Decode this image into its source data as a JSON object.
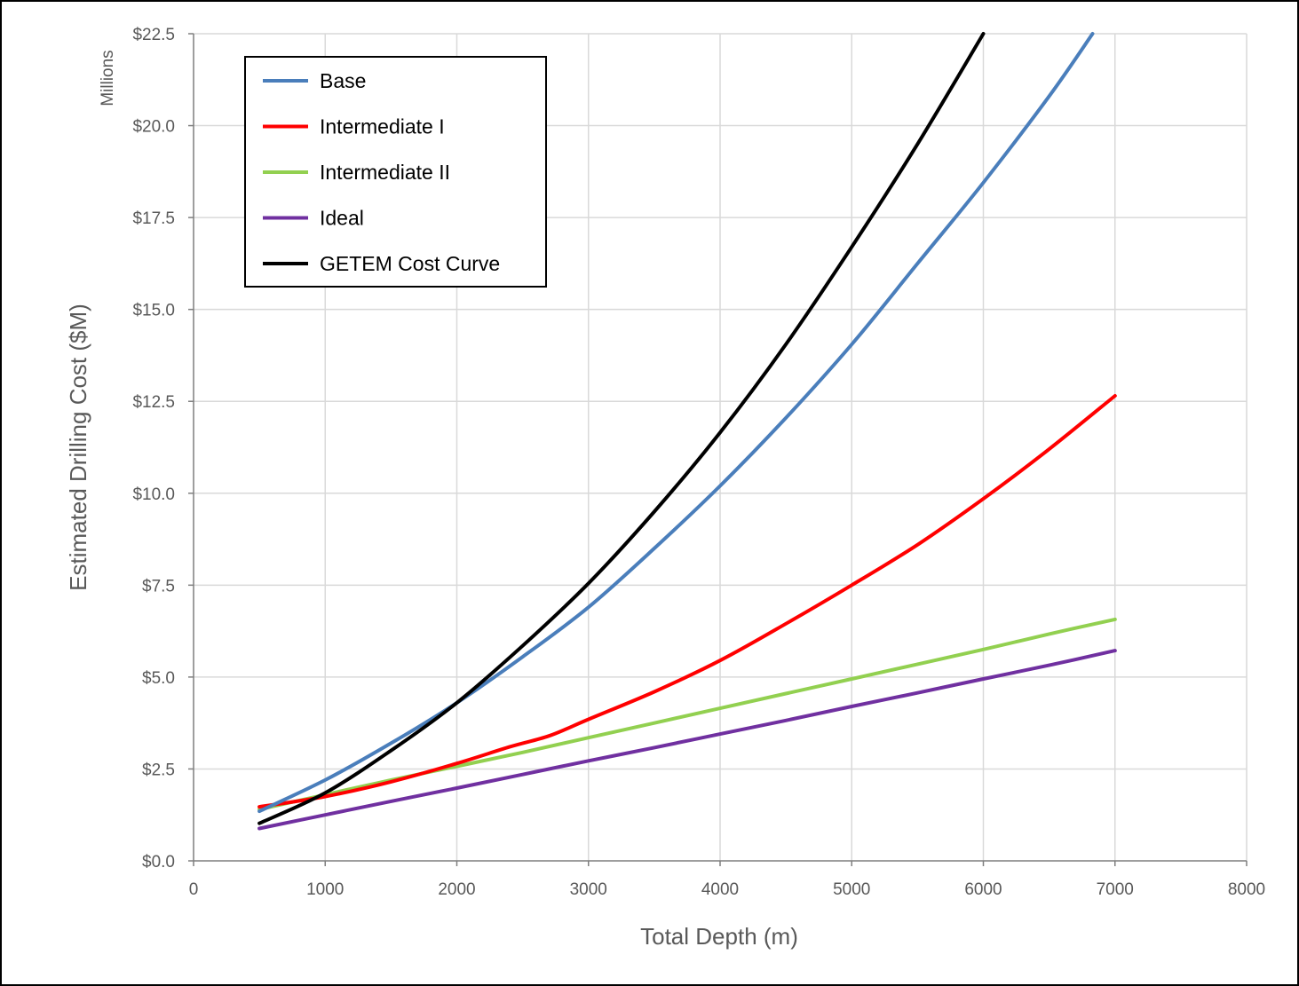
{
  "chart_data": {
    "type": "line",
    "xlabel": "Total Depth (m)",
    "ylabel": "Estimated Drilling Cost ($M)",
    "y_units_label": "Millions",
    "xlim": [
      0,
      8000
    ],
    "ylim": [
      0,
      22.5
    ],
    "x_ticks": [
      "0",
      "1000",
      "2000",
      "3000",
      "4000",
      "5000",
      "6000",
      "7000",
      "8000"
    ],
    "x_tick_values": [
      0,
      1000,
      2000,
      3000,
      4000,
      5000,
      6000,
      7000,
      8000
    ],
    "y_ticks": [
      "$0.0",
      "$2.5",
      "$5.0",
      "$7.5",
      "$10.0",
      "$12.5",
      "$15.0",
      "$17.5",
      "$20.0",
      "$22.5"
    ],
    "y_tick_values": [
      0,
      2.5,
      5,
      7.5,
      10,
      12.5,
      15,
      17.5,
      20,
      22.5
    ],
    "grid": true,
    "legend_position": "top-left",
    "series": [
      {
        "name": "Base",
        "color": "#4a7ebb",
        "x": [
          500,
          1000,
          1500,
          2000,
          2500,
          3000,
          3500,
          4000,
          4500,
          5000,
          5500,
          6000,
          6500,
          6830
        ],
        "y": [
          1.35,
          2.2,
          3.2,
          4.3,
          5.55,
          6.9,
          8.5,
          10.2,
          12.05,
          14.05,
          16.25,
          18.45,
          20.8,
          22.5
        ]
      },
      {
        "name": "Intermediate I",
        "color": "#ff0000",
        "x": [
          500,
          1000,
          1500,
          2000,
          2400,
          2700,
          3000,
          3500,
          4000,
          4500,
          5000,
          5500,
          6000,
          6500,
          7000
        ],
        "y": [
          1.47,
          1.75,
          2.15,
          2.65,
          3.1,
          3.4,
          3.85,
          4.6,
          5.45,
          6.45,
          7.5,
          8.6,
          9.85,
          11.2,
          12.65
        ]
      },
      {
        "name": "Intermediate II",
        "color": "#92d050",
        "x": [
          500,
          1000,
          1500,
          2000,
          2500,
          3000,
          3500,
          4000,
          4500,
          5000,
          5500,
          6000,
          6500,
          7000
        ],
        "y": [
          1.4,
          1.8,
          2.2,
          2.57,
          2.95,
          3.35,
          3.75,
          4.15,
          4.55,
          4.95,
          5.35,
          5.75,
          6.17,
          6.57
        ]
      },
      {
        "name": "Ideal",
        "color": "#7030a0",
        "x": [
          500,
          1000,
          1500,
          2000,
          2500,
          3000,
          3500,
          4000,
          4500,
          5000,
          5500,
          6000,
          6500,
          7000
        ],
        "y": [
          0.88,
          1.25,
          1.62,
          1.98,
          2.35,
          2.72,
          3.08,
          3.45,
          3.82,
          4.2,
          4.57,
          4.95,
          5.32,
          5.72
        ]
      },
      {
        "name": "GETEM Cost Curve",
        "color": "#000000",
        "x": [
          500,
          1000,
          1500,
          2000,
          2500,
          3000,
          3500,
          4000,
          4500,
          5000,
          5500,
          6000
        ],
        "y": [
          1.02,
          1.85,
          3.0,
          4.3,
          5.85,
          7.55,
          9.5,
          11.65,
          14.05,
          16.7,
          19.5,
          22.5
        ]
      }
    ]
  }
}
